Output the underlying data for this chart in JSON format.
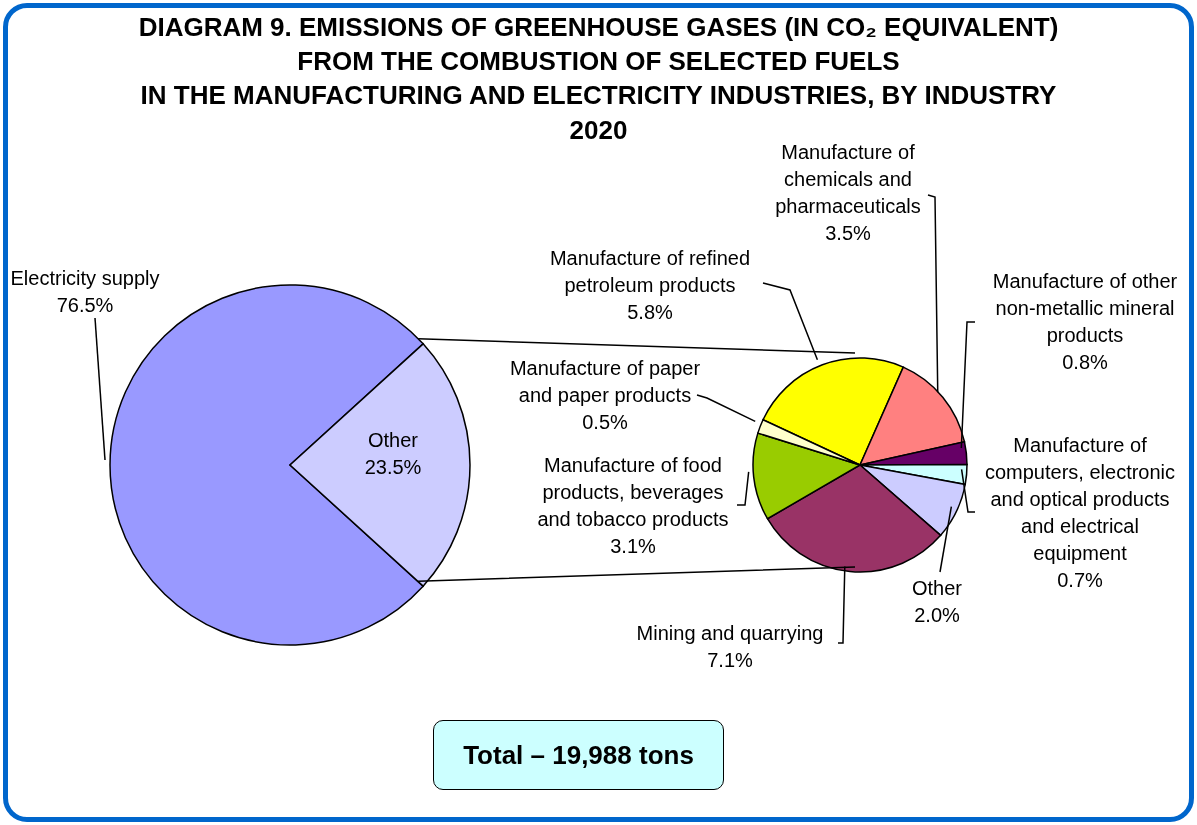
{
  "chart_data": [
    {
      "type": "pie",
      "title": "DIAGRAM 9. EMISSIONS OF GREENHOUSE GASES (IN CO₂ EQUIVALENT)\nFROM THE COMBUSTION OF SELECTED FUELS\nIN THE MANUFACTURING AND ELECTRICITY INDUSTRIES, BY INDUSTRY",
      "subtitle": "2020",
      "categories": [
        "Electricity supply",
        "Other"
      ],
      "values": [
        76.5,
        23.5
      ],
      "value_labels": [
        "76.5%",
        "23.5%"
      ],
      "colors": [
        "#9999ff",
        "#ccccff"
      ],
      "annotations": [
        "Total – 19,988 tons"
      ]
    },
    {
      "type": "pie",
      "categories": [
        "Manufacture of refined petroleum products",
        "Manufacture of chemicals and pharmaceuticals",
        "Manufacture of other non-metallic mineral products",
        "Manufacture of computers, electronic and optical products and electrical equipment",
        "Other",
        "Mining and quarrying",
        "Manufacture of food products, beverages and tobacco products",
        "Manufacture of paper and paper products"
      ],
      "values": [
        5.8,
        3.5,
        0.8,
        0.7,
        2.0,
        7.1,
        3.1,
        0.5
      ],
      "value_labels": [
        "5.8%",
        "3.5%",
        "0.8%",
        "0.7%",
        "2.0%",
        "7.1%",
        "3.1%",
        "0.5%"
      ],
      "colors": [
        "#ffff00",
        "#ff8080",
        "#660066",
        "#ccffff",
        "#ccccff",
        "#993366",
        "#99cc00",
        "#ffffcc"
      ]
    }
  ]
}
